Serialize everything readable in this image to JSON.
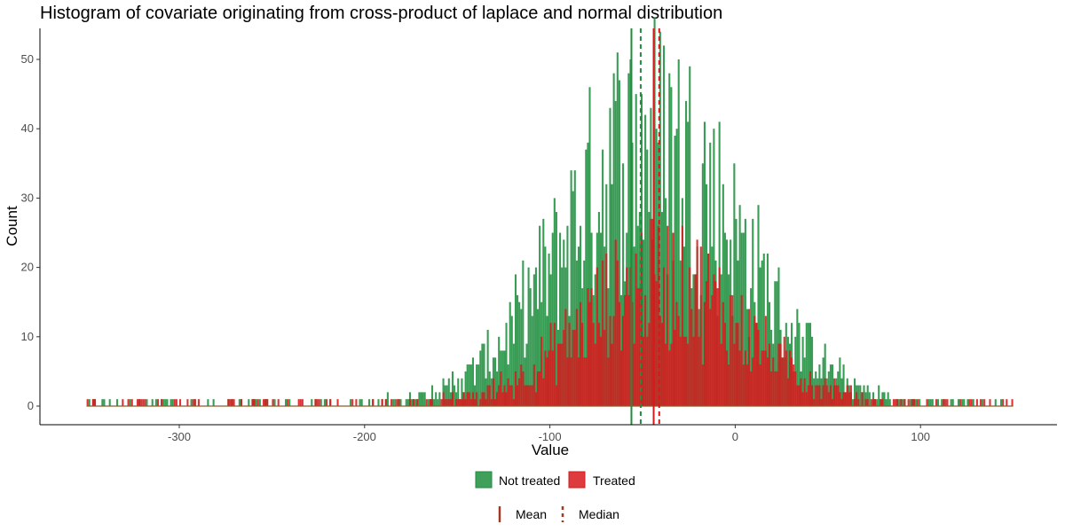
{
  "chart_data": {
    "type": "histogram",
    "title": "Histogram of covariate originating from cross-product of laplace and normal distribution",
    "xlabel": "Value",
    "ylabel": "Count",
    "xlim": [
      -350,
      150
    ],
    "ylim": [
      0,
      53
    ],
    "x_ticks": [
      -300,
      -200,
      -100,
      0,
      100
    ],
    "x_tick_labels": [
      "-300",
      "-200",
      "-100",
      "0",
      "100"
    ],
    "y_ticks": [
      0,
      10,
      20,
      30,
      40,
      50
    ],
    "y_tick_labels": [
      "0",
      "10",
      "20",
      "30",
      "40",
      "50"
    ],
    "bin_width": 1,
    "series": [
      {
        "name": "Not treated",
        "color": "#1e8e3e",
        "approx_distribution": {
          "center": -45,
          "sd": 48,
          "peak_count": 38
        },
        "mean": -56,
        "median": -51
      },
      {
        "name": "Treated",
        "color": "#d7191c",
        "approx_distribution": {
          "center": -40,
          "sd": 45,
          "peak_count": 18
        },
        "mean": -44,
        "median": -41
      }
    ],
    "reference_lines": [
      {
        "label": "Mean",
        "style": "solid"
      },
      {
        "label": "Median",
        "style": "dashed"
      }
    ],
    "legend_position": "bottom",
    "grid": false
  }
}
